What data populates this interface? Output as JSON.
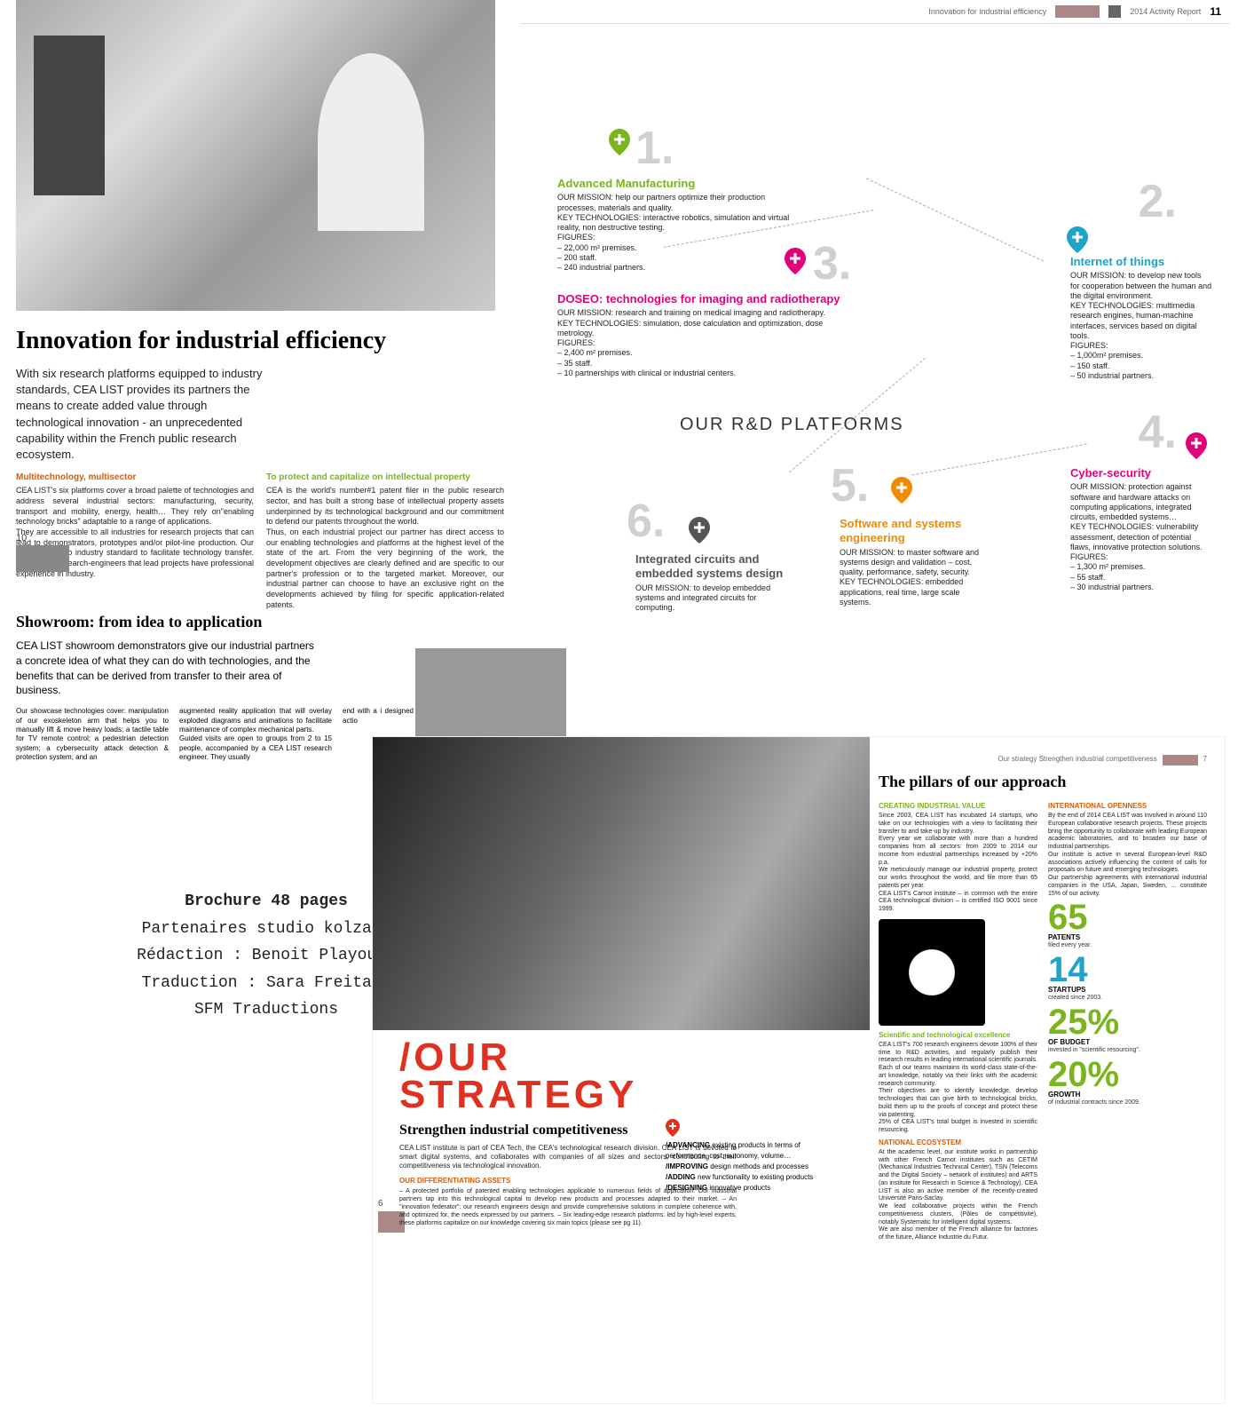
{
  "header": {
    "tagline": "Innovation for industrial efficiency",
    "pagenum": "11",
    "report": "2014 Activity Report"
  },
  "main": {
    "title": "Innovation for industrial efficiency",
    "intro": "With six research platforms equipped to industry standards, CEA LIST provides its partners the means to create added value through technological innovation - an unprecedented capability within the French public research ecosystem.",
    "page_left": "10",
    "col1_heading": "Multitechnology, multisector",
    "col1_body": "CEA LIST's six platforms cover a broad palette of technologies and address several industrial sectors: manufacturing, security, transport and mobility, energy, health… They rely on\"enabling technology bricks\" adaptable to a range of applications.\nThey are accessible to all industries for research projects that can lead to demonstrators, prototypes and/or pilot-line production. Our equipment is to industry standard to facilitate technology transfer. 40% of our research-engineers that lead projects have professional experience in industry.",
    "col2_heading": "To protect and capitalize on intellectual property",
    "col2_body": "CEA is the world's number#1 patent filer in the public research sector, and has built a strong base of intellectual property assets underpinned by its technological background and our commitment to defend our patents throughout the world.\nThus, on each industrial project our partner has direct access to our enabling technologies and platforms at the highest level of the state of the art. From the very beginning of the work, the development objectives are clearly defined and are specific to our partner's profession or to the targeted market. Moreover, our industrial partner can choose to have an exclusive right on the developments achieved by filing for specific application-related patents."
  },
  "platforms_title": "OUR R&D PLATFORMS",
  "platforms": {
    "p1": {
      "num": "1.",
      "color": "#7ab51d",
      "title": "Advanced Manufacturing",
      "body": "OUR MISSION: help our partners optimize their production processes, materials and quality.\nKEY TECHNOLOGIES: interactive robotics, simulation and virtual reality, non destructive testing.\nFIGURES:\n– 22,000 m² premises.\n– 200 staff.\n– 240 industrial partners."
    },
    "p2": {
      "num": "2.",
      "color": "#1fa3c9",
      "title": "Internet of things",
      "body": "OUR MISSION: to develop new tools for cooperation between the human and the digital environment.\nKEY TECHNOLOGIES: multimedia research engines, human-machine interfaces, services based on digital tools.\nFIGURES:\n– 1,000m² premises.\n– 150 staff.\n– 50 industrial partners."
    },
    "p3": {
      "num": "3.",
      "color": "#e3007b",
      "title": "DOSEO: technologies for imaging and radiotherapy",
      "body": "OUR MISSION: research and training on medical imaging and radiotherapy.\nKEY TECHNOLOGIES: simulation, dose calculation and optimization, dose metrology.\nFIGURES:\n– 2,400 m² premises.\n– 35 staff.\n– 10 partnerships with clinical or industrial centers."
    },
    "p4": {
      "num": "4.",
      "color": "#e3007b",
      "title": "Cyber-security",
      "body": "OUR MISSION: protection against software and hardware attacks on computing applications, integrated circuits, embedded systems…\nKEY TECHNOLOGIES: vulnerability assessment, detection of potential flaws, innovative protection solutions.\nFIGURES:\n– 1,300 m² premises.\n– 55 staff.\n– 30 industrial partners."
    },
    "p5": {
      "num": "5.",
      "color": "#f08c00",
      "title": "Software and systems engineering",
      "body": "OUR MISSION: to master software and systems design and validation – cost, quality, performance, safety, security.\nKEY TECHNOLOGIES: embedded applications, real time, large scale systems."
    },
    "p6": {
      "num": "6.",
      "color": "#555",
      "title": "Integrated circuits and embedded systems design",
      "body": "OUR MISSION: to develop embedded systems and integrated circuits for computing."
    }
  },
  "showroom": {
    "title": "Showroom: from idea to application",
    "intro": "CEA LIST showroom demonstrators give our industrial partners a concrete idea of what they can do with technologies, and the benefits that can be derived from transfer to their area of business.",
    "c1": "Our showcase technologies cover: manipulation of our exoskeleton arm that helps you to manually lift & move heavy loads; a tactile table for TV remote control; a pedestrian detection system; a cybersecurity attack detection & protection system; and an",
    "c2": "augmented reality application that will overlay exploded diagrams and animations to facilitate maintenance of complex mechanical parts.\nGuided visits are open to groups from 2 to 15 people, accompanied by a CEA LIST research engineer. They usually",
    "c3": "end with a i designed to defining appl sequent actio"
  },
  "credits": {
    "l1": "Brochure 48 pages",
    "l2": "Partenaires studio kolza :",
    "l3": "Rédaction : Benoit Playoust",
    "l4": "Traduction : Sara Freitas,",
    "l5": "SFM Traductions"
  },
  "strategy": {
    "header": "Our strategy Strengthen industrial competitiveness",
    "title1": "/OUR",
    "title2": "STRATEGY",
    "subtitle": "Strengthen industrial competitiveness",
    "body": "CEA LIST institute is part of CEA Tech, the CEA's technological research division. CEA LIST is devoted to smart digital systems, and collaborates with companies of all sizes and sectors, contributing to their competitiveness via technological innovation.",
    "assets_h": "OUR DIFFERENTIATING ASSETS",
    "assets": "– A protected portfolio of patented enabling technologies applicable to numerous fields of application. Our industrial partners tap into this technological capital to develop new products and processes adapted to their market.\n– An \"innovation federator\": our research engineers design and provide comprehensive solutions in complete coherence with, and optimized for, the needs expressed by our partners.\n– Six leading-edge research platforms: led by high-level experts, these platforms capitalize on our knowledge covering six main topics (please see pg 11).",
    "actions_h": "/ADVANCING",
    "a1": " existing products in terms of performance, cost, autonomy, volume…",
    "a2h": "/IMPROVING",
    "a2": " design methods and processes",
    "a3h": "/ADDING",
    "a3": " new functionality to existing products",
    "a4h": "/DESIGNING",
    "a4": " innovative products",
    "pillars_title": "The pillars of our approach",
    "pc1_h1": "CREATING INDUSTRIAL VALUE",
    "pc1_b1": "Since 2003, CEA LIST has incubated 14 startups, who take on our technologies with a view to facilitating their transfer to and take-up by industry.\nEvery year we collaborate with more than a hundred companies from all sectors: from 2009 to 2014 our income from industrial partnerships increased by +20% p.a.\nWe meticulously manage our industrial property, protect our works throughout the world, and file more than 65 patents per year.\nCEA LIST's Carnot institute – in common with the entire CEA technological division – is certified ISO 9001 since 1999.",
    "pc1_h2": "Scientific and technological excellence",
    "pc1_b2": "CEA LIST's 700 research engineers devote 100% of their time to R&D activities, and regularly publish their research results in leading international scientific journals. Each of our teams maintains its world-class state-of-the-art knowledge, notably via their links with the academic research community.\nTheir objectives are to identify knowledge, develop technologies that can give birth to technological bricks, build them up to the proofs of concept and protect these via patenting.\n25% of CEA LIST's total budget is invested in scientific resourcing.",
    "pc1_h3": "NATIONAL ECOSYSTEM",
    "pc1_b3": "At the academic level, our institute works in partnership with other French Carnot institutes such as CETIM (Mechanical Industries Technical Center), TSN (Telecoms and the Digital Society – network of institutes) and ARTS (an institute for Research in Science & Technology). CEA LIST is also an active member of the recently-created Université Paris-Saclay.\nWe lead collaborative projects within the French competitiveness clusters, (Pôles de compétitivité), notably Systematic for intelligent digital systems.\nWe are also member of the French alliance for factories of the future, Alliance Industrie du Futur.",
    "pc2_h1": "INTERNATIONAL OPENNESS",
    "pc2_b1": "By the end of 2014 CEA LIST was involved in around 110 European collaborative research projects. These projects bring the opportunity to collaborate with leading European academic laboratories, and to broaden our base of industrial partnerships.\nOur institute is active in several European-level R&D associations actively influencing the content of calls for proposals on future and emerging technologies.\nOur partnership agreements with international industrial companies in the USA, Japan, Sweden, … constitute 15% of our activity.",
    "stats": [
      {
        "num": "65",
        "label": "PATENTS",
        "sub": "filed every year.",
        "color": "#7ab51d"
      },
      {
        "num": "14",
        "label": "STARTUPS",
        "sub": "created since 2003.",
        "color": "#1fa3c9"
      },
      {
        "num": "25%",
        "label": "OF BUDGET",
        "sub": "invested in \"scientific resourcing\".",
        "color": "#7ab51d"
      },
      {
        "num": "20%",
        "label": "GROWTH",
        "sub": "of industrial contracts since 2009.",
        "color": "#7ab51d"
      }
    ],
    "page_right": "7",
    "page_left": "6"
  },
  "colors": {
    "green": "#7ab51d",
    "cyan": "#1fa3c9",
    "magenta": "#e3007b",
    "orange": "#f08c00",
    "red": "#e03020",
    "grey": "#d0d0d0"
  }
}
